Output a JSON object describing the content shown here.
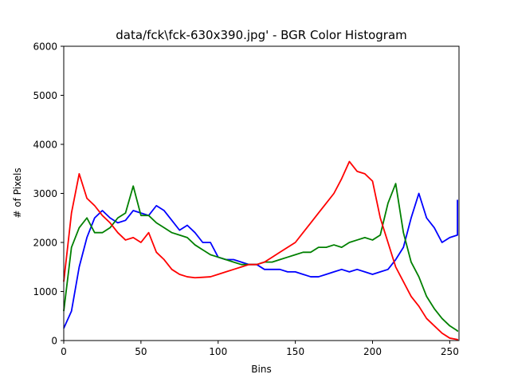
{
  "chart_data": {
    "type": "line",
    "title": "data/fck\\fck-630x390.jpg' - BGR Color Histogram",
    "xlabel": "Bins",
    "ylabel": "# of Pixels",
    "xlim": [
      0,
      256
    ],
    "ylim": [
      0,
      6000
    ],
    "x_ticks": [
      0,
      50,
      100,
      150,
      200,
      250
    ],
    "y_ticks": [
      0,
      1000,
      2000,
      3000,
      4000,
      5000,
      6000
    ],
    "grid": false,
    "legend": false,
    "x_step": 5,
    "series": [
      {
        "color": "#0000ff",
        "values": [
          250,
          600,
          1500,
          2100,
          2500,
          2650,
          2500,
          2400,
          2450,
          2650,
          2600,
          2550,
          2750,
          2650,
          2450,
          2250,
          2350,
          2200,
          2000,
          2000,
          1700,
          1650,
          1650,
          1600,
          1550,
          1550,
          1450,
          1450,
          1450,
          1400,
          1400,
          1350,
          1300,
          1300,
          1350,
          1400,
          1450,
          1400,
          1450,
          1400,
          1350,
          1400,
          1450,
          1650,
          1900,
          2500,
          3000,
          2500,
          2300,
          2000,
          2100,
          2150,
          2870
        ]
      },
      {
        "color": "#008000",
        "values": [
          600,
          1900,
          2300,
          2500,
          2200,
          2200,
          2300,
          2500,
          2600,
          3150,
          2550,
          2550,
          2400,
          2300,
          2200,
          2150,
          2100,
          1950,
          1850,
          1750,
          1700,
          1650,
          1600,
          1550,
          1550,
          1550,
          1600,
          1600,
          1650,
          1700,
          1750,
          1800,
          1800,
          1900,
          1900,
          1950,
          1900,
          2000,
          2050,
          2100,
          2050,
          2150,
          2800,
          3200,
          2200,
          1600,
          1300,
          900,
          650,
          450,
          300,
          200,
          180
        ]
      },
      {
        "color": "#ff0000",
        "values": [
          1200,
          2600,
          3400,
          2900,
          2750,
          2550,
          2400,
          2200,
          2050,
          2100,
          2000,
          2200,
          1800,
          1650,
          1450,
          1350,
          1300,
          1280,
          1290,
          1300,
          1350,
          1400,
          1450,
          1500,
          1550,
          1550,
          1600,
          1700,
          1800,
          1900,
          2000,
          2200,
          2400,
          2600,
          2800,
          3000,
          3300,
          3650,
          3450,
          3400,
          3250,
          2500,
          2000,
          1500,
          1200,
          900,
          700,
          450,
          300,
          150,
          50,
          20,
          0
        ]
      }
    ]
  }
}
